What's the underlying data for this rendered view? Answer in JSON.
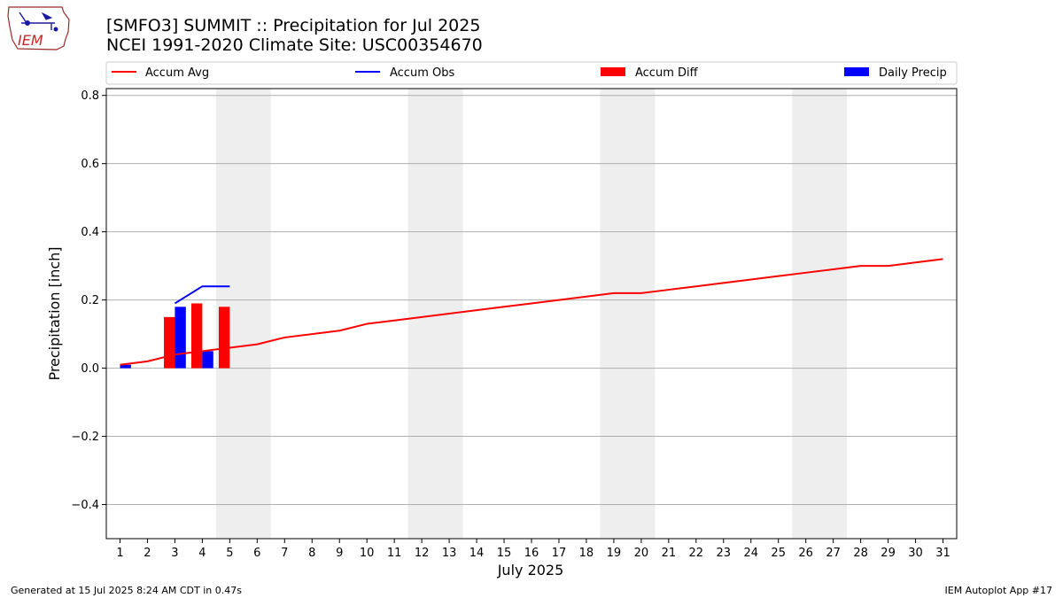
{
  "header": {
    "logo_text": "IEM",
    "title_line1": "[SMFO3] SUMMIT :: Precipitation for Jul 2025",
    "title_line2": "NCEI 1991-2020 Climate Site: USC00354670"
  },
  "footer": {
    "generated": "Generated at 15 Jul 2025 8:24 AM CDT in 0.47s",
    "app": "IEM Autoplot App #17"
  },
  "chart_data": {
    "type": "bar",
    "xlabel": "July 2025",
    "ylabel": "Precipitation [inch]",
    "xlim": [
      0.5,
      31.5
    ],
    "ylim": [
      -0.5,
      0.82
    ],
    "yticks": [
      -0.4,
      -0.2,
      0.0,
      0.2,
      0.4,
      0.6,
      0.8
    ],
    "ytick_labels": [
      "−0.4",
      "−0.2",
      "0.0",
      "0.2",
      "0.4",
      "0.6",
      "0.8"
    ],
    "x": [
      1,
      2,
      3,
      4,
      5,
      6,
      7,
      8,
      9,
      10,
      11,
      12,
      13,
      14,
      15,
      16,
      17,
      18,
      19,
      20,
      21,
      22,
      23,
      24,
      25,
      26,
      27,
      28,
      29,
      30,
      31
    ],
    "grid": "horizontal",
    "legend_placement": "top, above plot, 4 columns",
    "weekend_shading": [
      [
        5,
        6
      ],
      [
        12,
        13
      ],
      [
        19,
        20
      ],
      [
        26,
        27
      ]
    ],
    "colors": {
      "accum_avg": "#ff0000",
      "accum_obs": "#0000ff",
      "accum_diff": "#ff0000",
      "daily_precip": "#0000ff",
      "weekend": "#eeeeee",
      "grid": "#b0b0b0"
    },
    "series": [
      {
        "name": "Accum Avg",
        "kind": "line",
        "x": [
          1,
          2,
          3,
          4,
          5,
          6,
          7,
          8,
          9,
          10,
          11,
          12,
          13,
          14,
          15,
          16,
          17,
          18,
          19,
          20,
          21,
          22,
          23,
          24,
          25,
          26,
          27,
          28,
          29,
          30,
          31
        ],
        "values": [
          0.01,
          0.02,
          0.04,
          0.05,
          0.06,
          0.07,
          0.09,
          0.1,
          0.11,
          0.13,
          0.14,
          0.15,
          0.16,
          0.17,
          0.18,
          0.19,
          0.2,
          0.21,
          0.22,
          0.22,
          0.23,
          0.24,
          0.25,
          0.26,
          0.27,
          0.28,
          0.29,
          0.3,
          0.3,
          0.31,
          0.32
        ]
      },
      {
        "name": "Accum Obs",
        "kind": "line",
        "x": [
          3,
          4,
          5
        ],
        "values": [
          0.19,
          0.24,
          0.24
        ]
      },
      {
        "name": "Accum Diff",
        "kind": "bar",
        "x": [
          1,
          2,
          3,
          4,
          5
        ],
        "values": [
          0.0,
          0.0,
          0.15,
          0.19,
          0.18
        ]
      },
      {
        "name": "Daily Precip",
        "kind": "bar",
        "x": [
          1,
          2,
          3,
          4,
          5
        ],
        "values": [
          0.01,
          0.0,
          0.18,
          0.05,
          0.0
        ]
      }
    ]
  }
}
